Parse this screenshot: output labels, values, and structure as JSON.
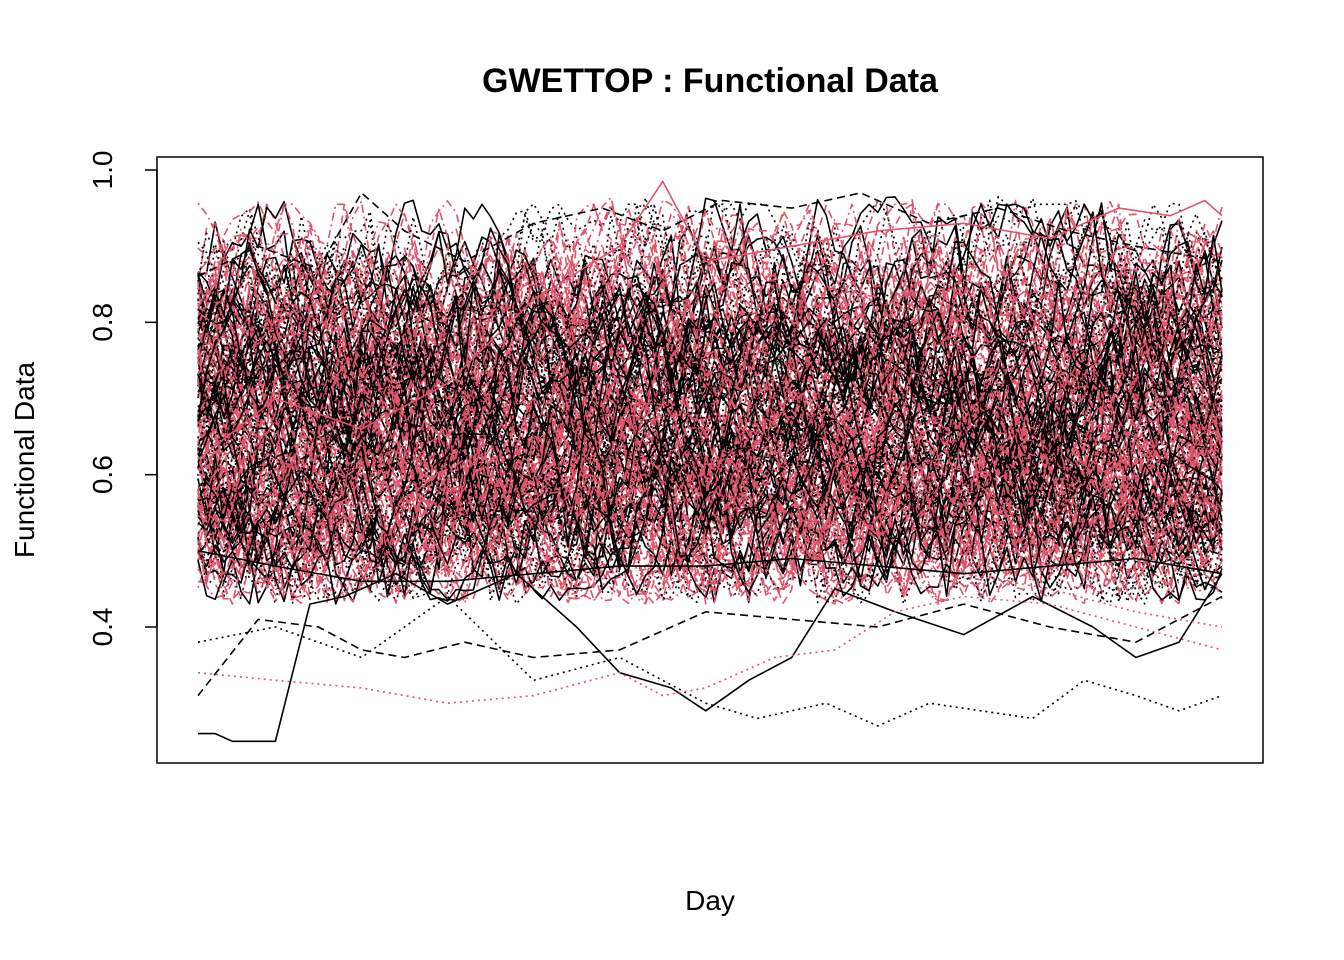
{
  "chart_data": {
    "type": "line",
    "title": "GWETTOP : Functional Data",
    "xlabel": "Day",
    "ylabel": "Functional Data",
    "xlim": [
      1,
      120
    ],
    "ylim": [
      0.25,
      1.0
    ],
    "yticks": [
      "0.4",
      "0.6",
      "0.8",
      "1.0"
    ],
    "x_ticks_shown": false,
    "grid": false,
    "legend": "none",
    "colors": {
      "black": "#000000",
      "red": "#DF536B"
    },
    "line_styles": [
      "solid",
      "dashed",
      "dotted",
      "dotdash"
    ],
    "series_count_approx": 200,
    "envelope": {
      "typical_range": [
        0.45,
        0.92
      ],
      "min": 0.25,
      "max": 0.985
    },
    "notable_series": [
      {
        "color": "black",
        "style": "solid",
        "points": [
          [
            1,
            0.26
          ],
          [
            3,
            0.26
          ],
          [
            5,
            0.25
          ],
          [
            10,
            0.25
          ],
          [
            14,
            0.43
          ],
          [
            18,
            0.44
          ],
          [
            24,
            0.47
          ],
          [
            30,
            0.43
          ],
          [
            38,
            0.47
          ],
          [
            45,
            0.4
          ],
          [
            50,
            0.34
          ],
          [
            56,
            0.32
          ],
          [
            60,
            0.29
          ],
          [
            65,
            0.33
          ],
          [
            70,
            0.36
          ],
          [
            75,
            0.45
          ],
          [
            82,
            0.42
          ],
          [
            90,
            0.39
          ],
          [
            98,
            0.44
          ],
          [
            105,
            0.4
          ],
          [
            110,
            0.36
          ],
          [
            115,
            0.38
          ],
          [
            120,
            0.47
          ]
        ]
      },
      {
        "color": "black",
        "style": "dotted",
        "points": [
          [
            1,
            0.38
          ],
          [
            10,
            0.4
          ],
          [
            20,
            0.36
          ],
          [
            30,
            0.44
          ],
          [
            40,
            0.33
          ],
          [
            50,
            0.36
          ],
          [
            60,
            0.3
          ],
          [
            66,
            0.28
          ],
          [
            74,
            0.3
          ],
          [
            80,
            0.27
          ],
          [
            86,
            0.3
          ],
          [
            92,
            0.29
          ],
          [
            98,
            0.28
          ],
          [
            104,
            0.33
          ],
          [
            110,
            0.31
          ],
          [
            115,
            0.29
          ],
          [
            120,
            0.31
          ]
        ]
      },
      {
        "color": "red",
        "style": "dotted",
        "points": [
          [
            1,
            0.34
          ],
          [
            10,
            0.33
          ],
          [
            20,
            0.32
          ],
          [
            30,
            0.3
          ],
          [
            40,
            0.31
          ],
          [
            50,
            0.34
          ],
          [
            55,
            0.31
          ],
          [
            60,
            0.32
          ],
          [
            68,
            0.36
          ],
          [
            75,
            0.37
          ],
          [
            82,
            0.42
          ],
          [
            90,
            0.44
          ],
          [
            100,
            0.43
          ],
          [
            110,
            0.4
          ],
          [
            120,
            0.37
          ]
        ]
      },
      {
        "color": "black",
        "style": "dashed",
        "points": [
          [
            1,
            0.31
          ],
          [
            8,
            0.41
          ],
          [
            15,
            0.4
          ],
          [
            20,
            0.37
          ],
          [
            25,
            0.36
          ],
          [
            32,
            0.38
          ],
          [
            40,
            0.36
          ],
          [
            50,
            0.37
          ],
          [
            60,
            0.42
          ],
          [
            70,
            0.41
          ],
          [
            80,
            0.4
          ],
          [
            90,
            0.43
          ],
          [
            100,
            0.4
          ],
          [
            110,
            0.38
          ],
          [
            120,
            0.44
          ]
        ]
      },
      {
        "color": "red",
        "style": "solid",
        "points": [
          [
            1,
            0.62
          ],
          [
            10,
            0.7
          ],
          [
            20,
            0.66
          ],
          [
            30,
            0.72
          ],
          [
            40,
            0.83
          ],
          [
            50,
            0.9
          ],
          [
            55,
            0.985
          ],
          [
            60,
            0.88
          ],
          [
            70,
            0.9
          ],
          [
            80,
            0.92
          ],
          [
            90,
            0.93
          ],
          [
            100,
            0.91
          ],
          [
            108,
            0.95
          ],
          [
            114,
            0.94
          ],
          [
            118,
            0.96
          ],
          [
            120,
            0.94
          ]
        ]
      },
      {
        "color": "black",
        "style": "dashed",
        "points": [
          [
            1,
            0.86
          ],
          [
            8,
            0.9
          ],
          [
            15,
            0.87
          ],
          [
            20,
            0.97
          ],
          [
            25,
            0.92
          ],
          [
            32,
            0.88
          ],
          [
            40,
            0.93
          ],
          [
            48,
            0.95
          ],
          [
            55,
            0.92
          ],
          [
            62,
            0.96
          ],
          [
            70,
            0.95
          ],
          [
            78,
            0.97
          ],
          [
            86,
            0.93
          ],
          [
            94,
            0.95
          ],
          [
            102,
            0.92
          ],
          [
            110,
            0.9
          ],
          [
            120,
            0.88
          ]
        ]
      },
      {
        "color": "red",
        "style": "dotted",
        "points": [
          [
            1,
            0.52
          ],
          [
            10,
            0.5
          ],
          [
            20,
            0.48
          ],
          [
            30,
            0.47
          ],
          [
            40,
            0.49
          ],
          [
            50,
            0.47
          ],
          [
            60,
            0.46
          ],
          [
            70,
            0.48
          ],
          [
            80,
            0.46
          ],
          [
            90,
            0.47
          ],
          [
            100,
            0.45
          ],
          [
            110,
            0.42
          ],
          [
            120,
            0.4
          ]
        ]
      },
      {
        "color": "black",
        "style": "solid",
        "points": [
          [
            1,
            0.5
          ],
          [
            10,
            0.48
          ],
          [
            20,
            0.46
          ],
          [
            30,
            0.46
          ],
          [
            40,
            0.47
          ],
          [
            50,
            0.48
          ],
          [
            60,
            0.48
          ],
          [
            70,
            0.49
          ],
          [
            80,
            0.48
          ],
          [
            90,
            0.47
          ],
          [
            100,
            0.48
          ],
          [
            110,
            0.49
          ],
          [
            120,
            0.47
          ]
        ]
      }
    ]
  }
}
